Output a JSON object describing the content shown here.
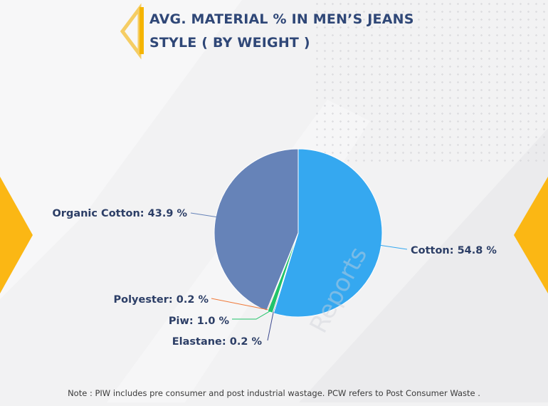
{
  "header": {
    "title_line1": "AVG. MATERIAL % IN MEN’S JEANS",
    "title_line2": "STYLE ( BY WEIGHT )"
  },
  "watermark": "Reports",
  "note": "Note : PIW includes pre consumer and post industrial wastage. PCW refers to Post Consumer Waste .",
  "colors": {
    "accent": "#f5b400",
    "title": "#2f4777",
    "label": "#2c3e66"
  },
  "chart_data": {
    "type": "pie",
    "title": "AVG. MATERIAL % IN MEN’S JEANS STYLE ( BY WEIGHT )",
    "start": "top-center, clockwise",
    "slices": [
      {
        "label": "Cotton",
        "value": 54.8,
        "display": "Cotton: 54.8 %",
        "color": "#35a8f0"
      },
      {
        "label": "Elastane",
        "value": 0.2,
        "display": "Elastane: 0.2 %",
        "color": "#3d4a8f"
      },
      {
        "label": "Piw",
        "value": 1.0,
        "display": "Piw: 1.0 %",
        "color": "#22c36a"
      },
      {
        "label": "Polyester",
        "value": 0.2,
        "display": "Polyester: 0.2 %",
        "color": "#f07a3a"
      },
      {
        "label": "Organic Cotton",
        "value": 43.9,
        "display": "Organic Cotton: 43.9 %",
        "color": "#6683b8"
      }
    ]
  }
}
